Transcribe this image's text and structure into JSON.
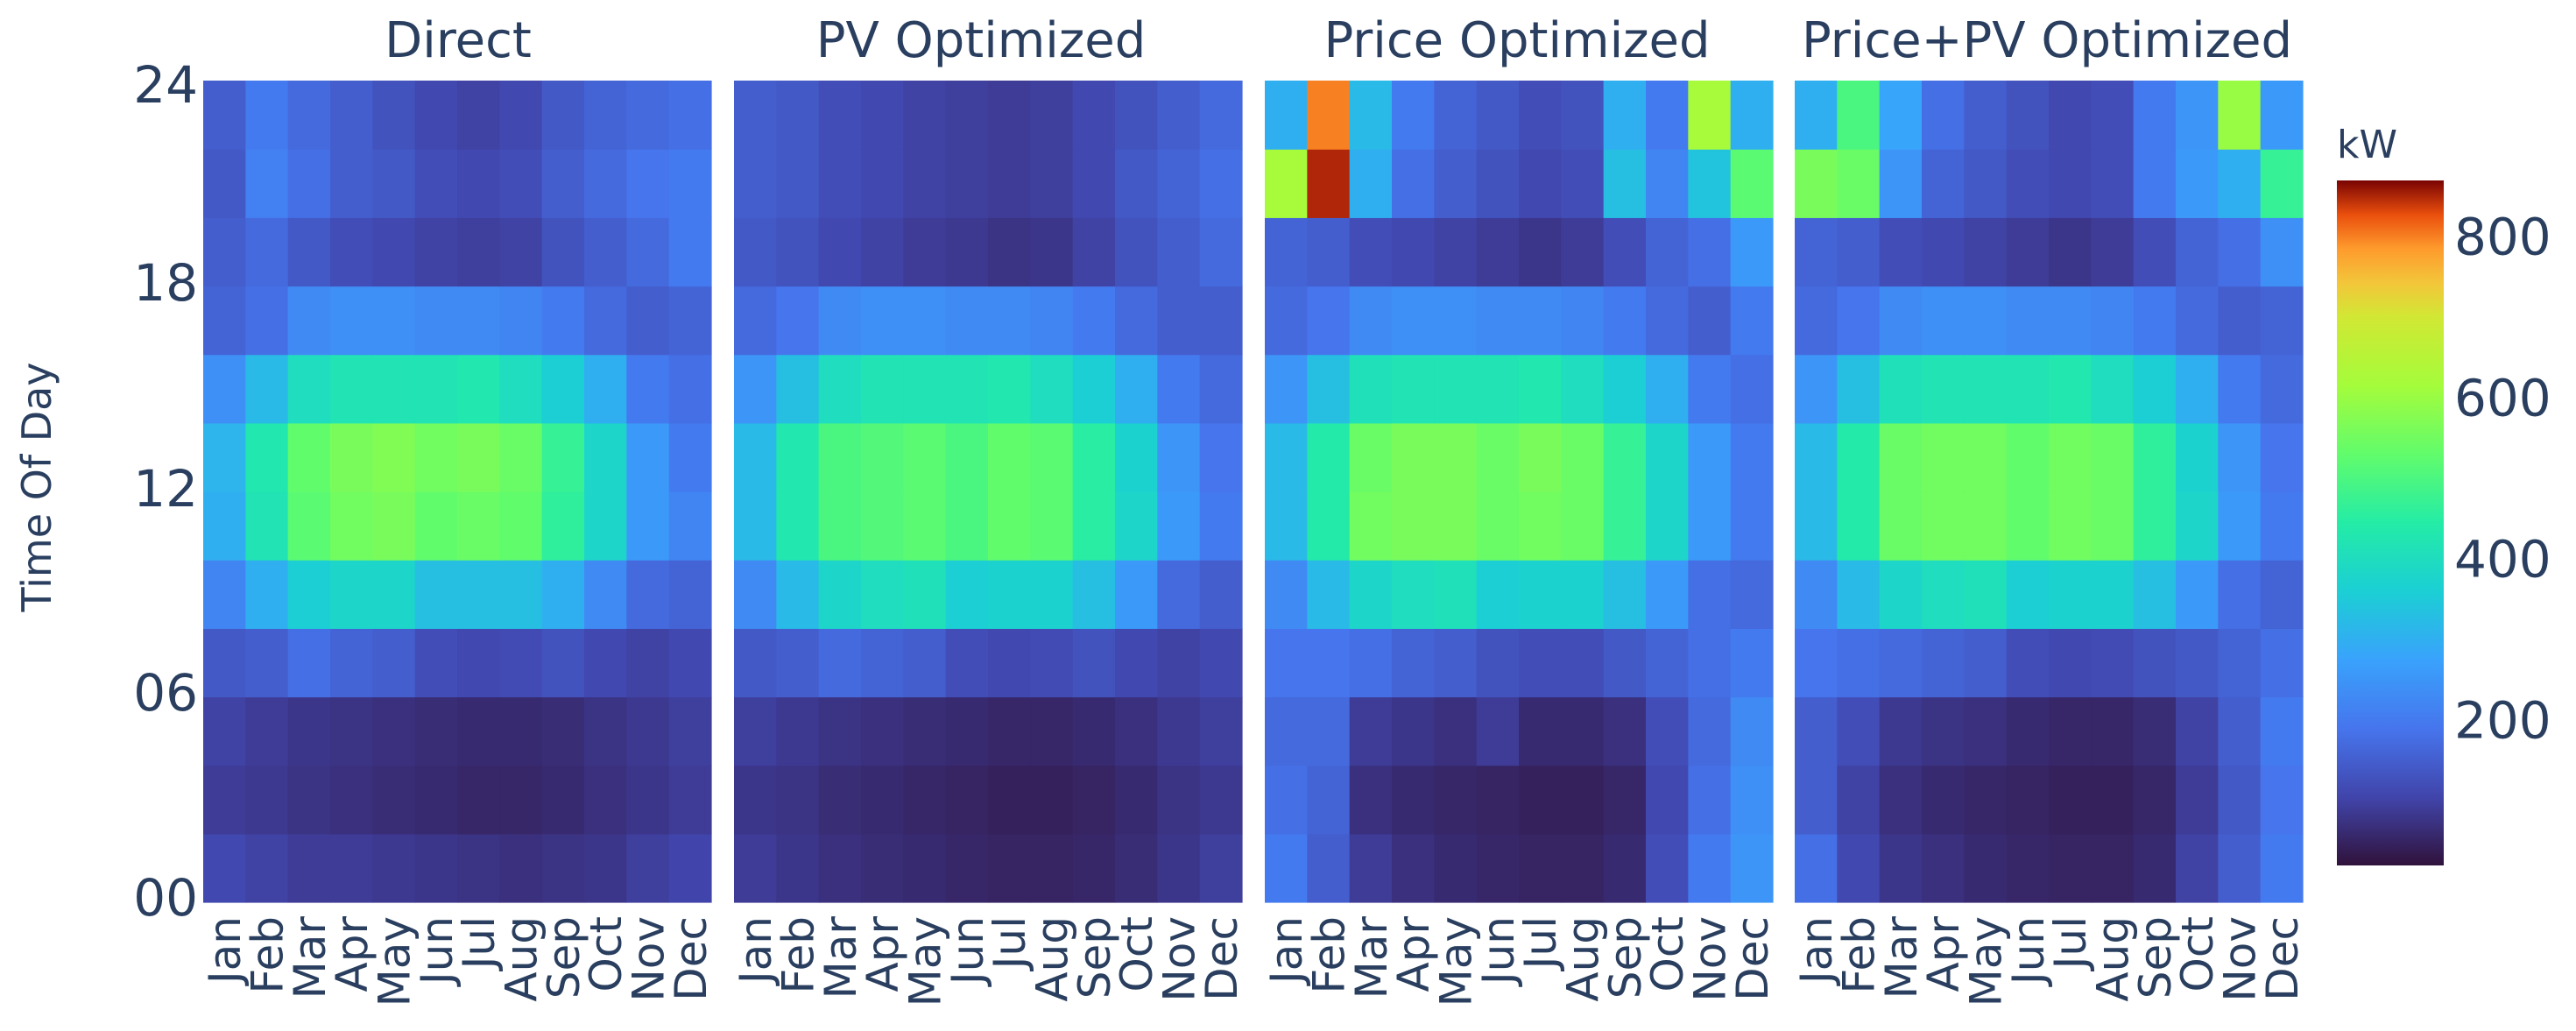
{
  "chart_data": {
    "type": "heatmap",
    "ylabel": "Time Of Day",
    "y_ticks": [
      "00",
      "06",
      "12",
      "18",
      "24"
    ],
    "months": [
      "Jan",
      "Feb",
      "Mar",
      "Apr",
      "May",
      "Jun",
      "Jul",
      "Aug",
      "Sep",
      "Oct",
      "Nov",
      "Dec"
    ],
    "colorbar": {
      "title": "kW",
      "ticks": [
        "200",
        "400",
        "600",
        "800"
      ],
      "tick_values": [
        200,
        400,
        600,
        800
      ],
      "range": [
        20,
        870
      ],
      "colorscale": "turbo"
    },
    "panels": [
      {
        "title": "Direct",
        "rows_hours": [
          0,
          2,
          4,
          6,
          8,
          10,
          12,
          14,
          16,
          18,
          20,
          22
        ],
        "values": [
          [
            110,
            100,
            90,
            90,
            85,
            80,
            75,
            70,
            75,
            80,
            95,
            105
          ],
          [
            90,
            85,
            75,
            70,
            65,
            60,
            55,
            55,
            60,
            70,
            80,
            90
          ],
          [
            100,
            90,
            80,
            75,
            70,
            65,
            60,
            60,
            65,
            75,
            85,
            95
          ],
          [
            140,
            150,
            180,
            160,
            150,
            120,
            110,
            115,
            130,
            110,
            100,
            110
          ],
          [
            220,
            300,
            360,
            380,
            380,
            330,
            330,
            330,
            300,
            230,
            170,
            160
          ],
          [
            300,
            420,
            520,
            550,
            560,
            530,
            540,
            530,
            460,
            380,
            260,
            220
          ],
          [
            310,
            430,
            530,
            560,
            570,
            550,
            560,
            540,
            470,
            380,
            260,
            200
          ],
          [
            240,
            320,
            400,
            420,
            420,
            420,
            430,
            400,
            360,
            300,
            200,
            180
          ],
          [
            160,
            180,
            230,
            240,
            240,
            230,
            230,
            220,
            200,
            170,
            150,
            160
          ],
          [
            150,
            170,
            140,
            120,
            110,
            100,
            95,
            100,
            130,
            150,
            170,
            200
          ],
          [
            140,
            210,
            180,
            150,
            140,
            120,
            110,
            120,
            150,
            170,
            190,
            200
          ],
          [
            150,
            200,
            170,
            150,
            130,
            110,
            100,
            110,
            140,
            160,
            170,
            180
          ]
        ]
      },
      {
        "title": "PV Optimized",
        "rows_hours": [
          0,
          2,
          4,
          6,
          8,
          10,
          12,
          14,
          16,
          18,
          20,
          22
        ],
        "values": [
          [
            90,
            80,
            70,
            65,
            60,
            55,
            50,
            50,
            55,
            65,
            80,
            95
          ],
          [
            80,
            75,
            65,
            60,
            55,
            50,
            45,
            45,
            50,
            60,
            75,
            85
          ],
          [
            95,
            85,
            75,
            70,
            65,
            60,
            55,
            55,
            60,
            70,
            85,
            95
          ],
          [
            140,
            150,
            170,
            160,
            150,
            120,
            110,
            115,
            130,
            110,
            100,
            110
          ],
          [
            230,
            320,
            380,
            400,
            410,
            360,
            370,
            370,
            330,
            260,
            170,
            150
          ],
          [
            320,
            430,
            500,
            510,
            520,
            500,
            530,
            520,
            450,
            380,
            260,
            200
          ],
          [
            320,
            430,
            500,
            510,
            520,
            500,
            530,
            520,
            450,
            370,
            250,
            190
          ],
          [
            250,
            330,
            400,
            420,
            420,
            420,
            430,
            400,
            360,
            300,
            200,
            170
          ],
          [
            170,
            190,
            230,
            240,
            240,
            230,
            230,
            220,
            200,
            170,
            150,
            150
          ],
          [
            140,
            130,
            110,
            100,
            90,
            85,
            75,
            80,
            100,
            130,
            150,
            170
          ],
          [
            150,
            140,
            120,
            110,
            100,
            95,
            90,
            95,
            110,
            140,
            160,
            180
          ],
          [
            150,
            140,
            120,
            110,
            100,
            95,
            90,
            95,
            110,
            130,
            150,
            170
          ]
        ]
      },
      {
        "title": "Price Optimized",
        "rows_hours": [
          0,
          2,
          4,
          6,
          8,
          10,
          12,
          14,
          16,
          18,
          20,
          22
        ],
        "values": [
          [
            200,
            150,
            90,
            70,
            60,
            55,
            50,
            50,
            60,
            120,
            200,
            250
          ],
          [
            180,
            160,
            70,
            60,
            55,
            50,
            45,
            45,
            55,
            110,
            180,
            240
          ],
          [
            170,
            170,
            90,
            80,
            70,
            90,
            60,
            60,
            70,
            120,
            170,
            230
          ],
          [
            190,
            190,
            180,
            160,
            150,
            130,
            120,
            120,
            140,
            160,
            180,
            200
          ],
          [
            230,
            320,
            380,
            400,
            410,
            360,
            370,
            370,
            330,
            260,
            180,
            170
          ],
          [
            320,
            440,
            550,
            560,
            560,
            540,
            550,
            540,
            470,
            380,
            260,
            200
          ],
          [
            320,
            440,
            540,
            560,
            560,
            540,
            560,
            540,
            470,
            380,
            260,
            200
          ],
          [
            250,
            330,
            410,
            420,
            420,
            420,
            430,
            400,
            360,
            300,
            200,
            180
          ],
          [
            170,
            190,
            230,
            240,
            240,
            230,
            230,
            220,
            200,
            170,
            150,
            200
          ],
          [
            160,
            150,
            120,
            110,
            100,
            90,
            80,
            90,
            120,
            160,
            180,
            260
          ],
          [
            620,
            850,
            300,
            180,
            150,
            130,
            110,
            120,
            330,
            220,
            340,
            520
          ],
          [
            300,
            800,
            320,
            200,
            160,
            140,
            120,
            130,
            300,
            200,
            620,
            300
          ]
        ]
      },
      {
        "title": "Price+PV Optimized",
        "rows_hours": [
          0,
          2,
          4,
          6,
          8,
          10,
          12,
          14,
          16,
          18,
          20,
          22
        ],
        "values": [
          [
            180,
            110,
            80,
            70,
            60,
            55,
            50,
            50,
            60,
            100,
            150,
            200
          ],
          [
            150,
            100,
            70,
            60,
            55,
            50,
            45,
            45,
            55,
            90,
            140,
            190
          ],
          [
            150,
            120,
            85,
            75,
            70,
            60,
            55,
            55,
            65,
            100,
            150,
            200
          ],
          [
            190,
            180,
            170,
            160,
            150,
            120,
            110,
            115,
            130,
            140,
            160,
            180
          ],
          [
            230,
            320,
            380,
            400,
            410,
            360,
            370,
            370,
            330,
            260,
            180,
            160
          ],
          [
            320,
            440,
            540,
            550,
            550,
            530,
            550,
            540,
            460,
            380,
            260,
            200
          ],
          [
            320,
            440,
            540,
            550,
            550,
            530,
            550,
            540,
            460,
            370,
            250,
            190
          ],
          [
            250,
            330,
            410,
            420,
            420,
            420,
            430,
            400,
            360,
            300,
            200,
            170
          ],
          [
            170,
            190,
            230,
            240,
            240,
            230,
            230,
            220,
            200,
            170,
            150,
            160
          ],
          [
            160,
            150,
            120,
            110,
            100,
            90,
            80,
            90,
            120,
            160,
            180,
            240
          ],
          [
            560,
            540,
            250,
            160,
            140,
            120,
            110,
            120,
            200,
            260,
            300,
            470
          ],
          [
            300,
            500,
            280,
            180,
            150,
            130,
            110,
            120,
            200,
            250,
            600,
            260
          ]
        ]
      }
    ]
  }
}
